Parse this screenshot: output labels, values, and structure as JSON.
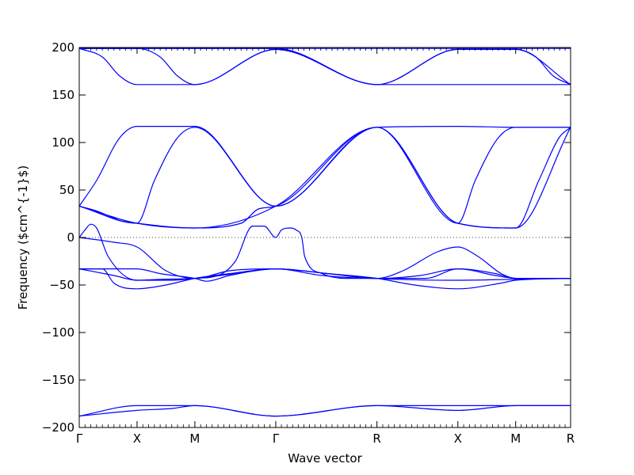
{
  "chart_data": {
    "type": "line",
    "title": "",
    "xlabel": "Wave vector",
    "ylabel": "Frequency ($cm^{-1}$)",
    "ylim": [
      -200,
      200
    ],
    "xlim": [
      0,
      8.5
    ],
    "y_ticks": [
      {
        "value": 200,
        "label": "200"
      },
      {
        "value": 150,
        "label": "150"
      },
      {
        "value": 100,
        "label": "100"
      },
      {
        "value": 50,
        "label": "50"
      },
      {
        "value": 0,
        "label": "0"
      },
      {
        "value": -50,
        "label": "−50"
      },
      {
        "value": -100,
        "label": "−100"
      },
      {
        "value": -150,
        "label": "−150"
      },
      {
        "value": -200,
        "label": "−200"
      }
    ],
    "x_ticks": [
      {
        "value": 0,
        "label": "Γ"
      },
      {
        "value": 1,
        "label": "X"
      },
      {
        "value": 2,
        "label": "M"
      },
      {
        "value": 3.4,
        "label": "Γ"
      },
      {
        "value": 5.15,
        "label": "R"
      },
      {
        "value": 6.55,
        "label": "X"
      },
      {
        "value": 7.55,
        "label": "M"
      },
      {
        "value": 8.5,
        "label": "R"
      }
    ],
    "grid": false,
    "zero_line": true,
    "line_color": "#0000ff",
    "series": [
      {
        "x": [
          0,
          1,
          2,
          3.4,
          5.15,
          6.55,
          7.55,
          8.5
        ],
        "y": [
          199,
          199,
          199,
          199,
          199,
          199,
          199,
          199
        ]
      },
      {
        "x": [
          0,
          0.4,
          0.7,
          1,
          2,
          3.4,
          5.15,
          6.55,
          7.55,
          8.5
        ],
        "y": [
          199,
          190,
          170,
          161,
          161,
          198,
          161,
          161,
          161,
          161
        ]
      },
      {
        "x": [
          0,
          1,
          1.4,
          1.7,
          2,
          3.4,
          5.15,
          6.55,
          7.55,
          8.5
        ],
        "y": [
          199,
          199,
          190,
          170,
          161,
          198,
          161,
          198,
          198,
          161
        ]
      },
      {
        "x": [
          0,
          1,
          2,
          3.4,
          5.15,
          6.55,
          7.55,
          7.9,
          8.2,
          8.5
        ],
        "y": [
          199,
          199,
          199,
          199,
          161,
          198,
          198,
          190,
          170,
          161
        ]
      },
      {
        "x": [
          0,
          0.3,
          0.7,
          1,
          2,
          3.4,
          5.15,
          6.55,
          7.55,
          8.5
        ],
        "y": [
          33,
          60,
          105,
          117,
          117,
          33,
          116,
          117,
          116,
          116
        ]
      },
      {
        "x": [
          0,
          1,
          1.3,
          1.7,
          2,
          3.4,
          5.15,
          6.55,
          6.85,
          7.25,
          7.55,
          8.5
        ],
        "y": [
          33,
          15,
          60,
          105,
          116,
          33,
          116,
          15,
          60,
          105,
          116,
          116
        ]
      },
      {
        "x": [
          0,
          0.3,
          0.7,
          1,
          2,
          2.8,
          3.1,
          3.4,
          5.15,
          6.55,
          7.55,
          8.5
        ],
        "y": [
          33,
          28,
          18,
          15,
          10,
          15,
          30,
          33,
          116,
          15,
          10,
          116
        ]
      },
      {
        "x": [
          0,
          1,
          2,
          3.4,
          5.15,
          6.55,
          7.55,
          7.95,
          8.3,
          8.5
        ],
        "y": [
          33,
          15,
          10,
          33,
          116,
          15,
          10,
          60,
          105,
          116
        ]
      },
      {
        "x": [
          0,
          0.1,
          0.2,
          0.3,
          0.5,
          1,
          1.6,
          2,
          2.4,
          2.7,
          3,
          3.2,
          3.4,
          3.5,
          3.65,
          3.75,
          3.85,
          3.9,
          4.2,
          4.6,
          5.15,
          5.6,
          6.2,
          6.55,
          6.9,
          7.3,
          7.55,
          8.5
        ],
        "y": [
          0,
          8,
          14,
          10,
          -20,
          -45,
          -45,
          -43,
          -40,
          -25,
          12,
          12,
          0,
          8,
          10,
          8,
          0,
          -20,
          -38,
          -43,
          -43,
          -35,
          -15,
          -10,
          -20,
          -38,
          -43,
          -43
        ]
      },
      {
        "x": [
          0,
          0.6,
          1,
          1.5,
          2,
          2.6,
          3.4,
          4.3,
          5.15,
          5.9,
          6.55,
          7.2,
          7.55,
          8.5
        ],
        "y": [
          0,
          -5,
          -10,
          -35,
          -43,
          -35,
          -33,
          -38,
          -43,
          -40,
          -33,
          -38,
          -43,
          -43
        ]
      },
      {
        "x": [
          0,
          0.6,
          1,
          1.4,
          2,
          2.7,
          3.4,
          4.3,
          5.15,
          5.8,
          6.55,
          7.3,
          7.55,
          8.5
        ],
        "y": [
          -33,
          -40,
          -45,
          -44,
          -43,
          -38,
          -33,
          -38,
          -43,
          -50,
          -54,
          -48,
          -45,
          -43
        ]
      },
      {
        "x": [
          0,
          0.4,
          0.6,
          1,
          1.5,
          2,
          2.6,
          3.4,
          4.3,
          5.15,
          6.55,
          7.55,
          8.5
        ],
        "y": [
          -33,
          -33,
          -48,
          -54,
          -50,
          -43,
          -38,
          -33,
          -38,
          -43,
          -45,
          -44,
          -43
        ]
      },
      {
        "x": [
          0,
          0.5,
          1,
          1.4,
          2,
          2.2,
          2.6,
          3.4,
          4.2,
          5.15,
          6,
          6.55,
          7.2,
          7.55,
          8.5
        ],
        "y": [
          -33,
          -33,
          -33,
          -38,
          -43,
          -46,
          -40,
          -33,
          -40,
          -43,
          -43,
          -33,
          -40,
          -43,
          -43
        ]
      },
      {
        "x": [
          0,
          1,
          2,
          3.4,
          5.15,
          6.55,
          7.55,
          8.5
        ],
        "y": [
          -188,
          -177,
          -177,
          -188,
          -177,
          -177,
          -177,
          -177
        ]
      },
      {
        "x": [
          0,
          1,
          1.6,
          2,
          3.4,
          5.15,
          6.55,
          7.55,
          8.5
        ],
        "y": [
          -188,
          -182,
          -180,
          -177,
          -188,
          -177,
          -182,
          -177,
          -177
        ]
      }
    ]
  }
}
